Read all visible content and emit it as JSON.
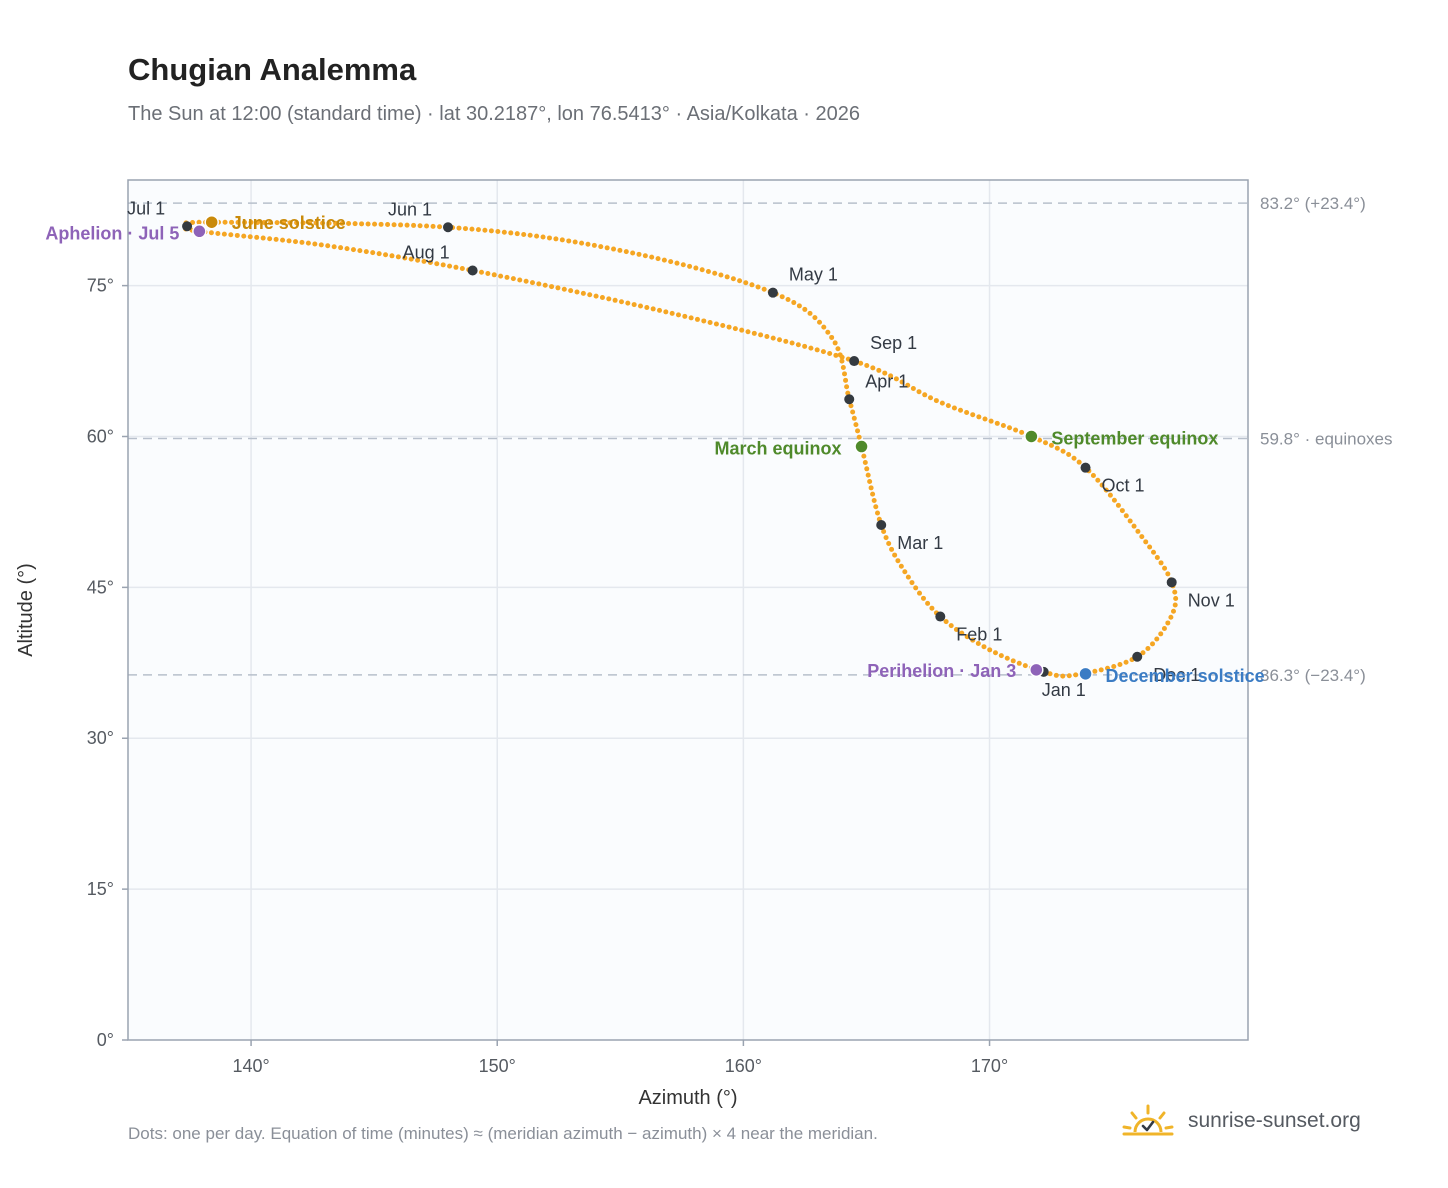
{
  "header": {
    "title": "Chugian Analemma",
    "subtitle": "The Sun at 12:00 (standard time) · lat 30.2187°, lon 76.5413° · Asia/Kolkata · 2026"
  },
  "footer": {
    "note": "Dots: one per day. Equation of time (minutes) ≈ (meridian azimuth − azimuth) × 4 near the meridian.",
    "brand": "sunrise-sunset.org"
  },
  "colors": {
    "path": "#f5a623",
    "month_dot": "#343a40",
    "solstice_june": "#c98a0a",
    "solstice_december": "#3b7cc4",
    "equinox": "#4f8a2b",
    "apsis": "#8e63b8",
    "reference_line": "#b8c0cc",
    "plot_bg": "#fafcfe",
    "grid": "#e4e8ee",
    "frame": "#9aa3b0"
  },
  "chart_data": {
    "type": "scatter",
    "xlabel": "Azimuth (°)",
    "ylabel": "Altitude (°)",
    "xlim": [
      135,
      180.5
    ],
    "ylim": [
      0,
      85.5
    ],
    "x_ticks": [
      140,
      150,
      160,
      170
    ],
    "x_tick_labels": [
      "140°",
      "150°",
      "160°",
      "170°"
    ],
    "y_ticks": [
      0,
      15,
      30,
      45,
      60,
      75
    ],
    "y_tick_labels": [
      "0°",
      "15°",
      "30°",
      "45°",
      "60°",
      "75°"
    ],
    "grid": true,
    "month_markers": [
      {
        "label": "Jan 1",
        "x": 172.2,
        "y": 36.6
      },
      {
        "label": "Feb 1",
        "x": 168.0,
        "y": 42.1
      },
      {
        "label": "Mar 1",
        "x": 165.6,
        "y": 51.2
      },
      {
        "label": "Apr 1",
        "x": 164.3,
        "y": 63.7
      },
      {
        "label": "May 1",
        "x": 161.2,
        "y": 74.3
      },
      {
        "label": "Jun 1",
        "x": 148.0,
        "y": 80.8
      },
      {
        "label": "Jul 1",
        "x": 137.4,
        "y": 80.9
      },
      {
        "label": "Aug 1",
        "x": 149.0,
        "y": 76.5
      },
      {
        "label": "Sep 1",
        "x": 164.5,
        "y": 67.5
      },
      {
        "label": "Oct 1",
        "x": 173.9,
        "y": 56.9
      },
      {
        "label": "Nov 1",
        "x": 177.4,
        "y": 45.5
      },
      {
        "label": "Dec 1",
        "x": 176.0,
        "y": 38.1
      }
    ],
    "events": [
      {
        "label": "Aphelion · Jul 5",
        "x": 137.9,
        "y": 80.4,
        "kind": "apsis"
      },
      {
        "label": "June solstice",
        "x": 138.4,
        "y": 81.3,
        "kind": "solstice_june"
      },
      {
        "label": "March equinox",
        "x": 164.8,
        "y": 59.0,
        "kind": "equinox"
      },
      {
        "label": "September equinox",
        "x": 171.7,
        "y": 60.0,
        "kind": "equinox"
      },
      {
        "label": "Perihelion · Jan 3",
        "x": 171.9,
        "y": 36.8,
        "kind": "apsis"
      },
      {
        "label": "December solstice",
        "x": 173.9,
        "y": 36.4,
        "kind": "solstice_december"
      }
    ],
    "reference_lines": [
      {
        "y": 83.2,
        "label": "83.2° (+23.4°)"
      },
      {
        "y": 59.8,
        "label": "59.8° · equinoxes"
      },
      {
        "y": 36.3,
        "label": "36.3° (−23.4°)"
      }
    ],
    "path_nodes": [
      {
        "x": 173.5,
        "y": 36.3
      },
      {
        "x": 176.0,
        "y": 38.1
      },
      {
        "x": 177.4,
        "y": 42.2
      },
      {
        "x": 177.4,
        "y": 45.5
      },
      {
        "x": 176.2,
        "y": 50.0
      },
      {
        "x": 173.9,
        "y": 56.9
      },
      {
        "x": 171.7,
        "y": 60.0
      },
      {
        "x": 168.0,
        "y": 63.4
      },
      {
        "x": 164.5,
        "y": 67.5
      },
      {
        "x": 157.0,
        "y": 72.3
      },
      {
        "x": 149.0,
        "y": 76.5
      },
      {
        "x": 143.0,
        "y": 79.0
      },
      {
        "x": 137.9,
        "y": 80.4
      },
      {
        "x": 137.4,
        "y": 80.9
      },
      {
        "x": 138.4,
        "y": 81.3
      },
      {
        "x": 148.0,
        "y": 80.8
      },
      {
        "x": 155.0,
        "y": 78.5
      },
      {
        "x": 161.2,
        "y": 74.3
      },
      {
        "x": 163.6,
        "y": 69.8
      },
      {
        "x": 164.3,
        "y": 63.7
      },
      {
        "x": 164.8,
        "y": 59.0
      },
      {
        "x": 165.6,
        "y": 51.2
      },
      {
        "x": 166.6,
        "y": 46.4
      },
      {
        "x": 168.0,
        "y": 42.1
      },
      {
        "x": 170.0,
        "y": 38.8
      },
      {
        "x": 172.2,
        "y": 36.6
      }
    ]
  }
}
